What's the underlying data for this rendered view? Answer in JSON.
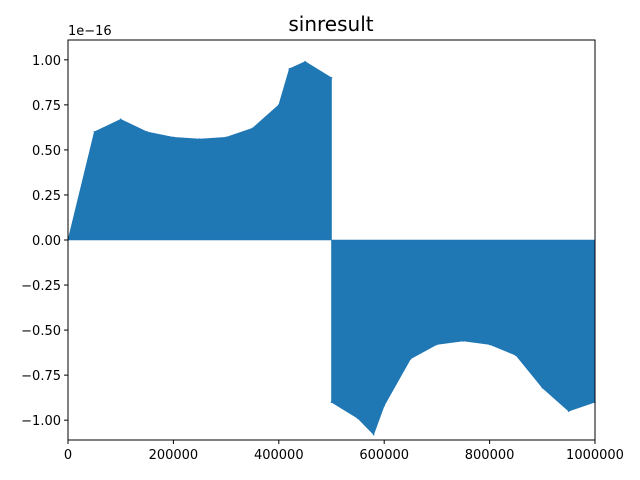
{
  "chart_data": {
    "type": "scatter",
    "title": "sinresult",
    "xlabel": "",
    "ylabel": "",
    "offset_text": "1e−16",
    "xlim": [
      0,
      1000000
    ],
    "ylim": [
      -1.11,
      1.11
    ],
    "scale_factor": 1e-16,
    "xticks": [
      0,
      200000,
      400000,
      600000,
      800000,
      1000000
    ],
    "xtick_labels": [
      "0",
      "200000",
      "400000",
      "600000",
      "800000",
      "1000000"
    ],
    "yticks": [
      1.0,
      0.75,
      0.5,
      0.25,
      0.0,
      -0.25,
      -0.5,
      -0.75,
      -1.0
    ],
    "ytick_labels": [
      "1.00",
      "0.75",
      "0.50",
      "0.25",
      "0.00",
      "−0.25",
      "−0.50",
      "−0.75",
      "−1.00"
    ],
    "grid": false,
    "legend": "none",
    "series": [
      {
        "color": "#1f77b4",
        "x": [
          0,
          50000,
          100000,
          150000,
          200000,
          250000,
          300000,
          350000,
          400000,
          420000,
          450000,
          500000
        ],
        "y": [
          0,
          0.6,
          0.67,
          0.6,
          0.57,
          0.56,
          0.57,
          0.62,
          0.75,
          0.95,
          0.99,
          0.9
        ]
      },
      {
        "color": "#1f77b4",
        "x": [
          500000,
          550000,
          580000,
          600000,
          650000,
          700000,
          750000,
          800000,
          850000,
          900000,
          950000,
          1000000
        ],
        "y": [
          -0.9,
          -0.99,
          -1.08,
          -0.92,
          -0.66,
          -0.58,
          -0.56,
          -0.58,
          -0.64,
          -0.82,
          -0.95,
          -0.9
        ]
      }
    ]
  }
}
